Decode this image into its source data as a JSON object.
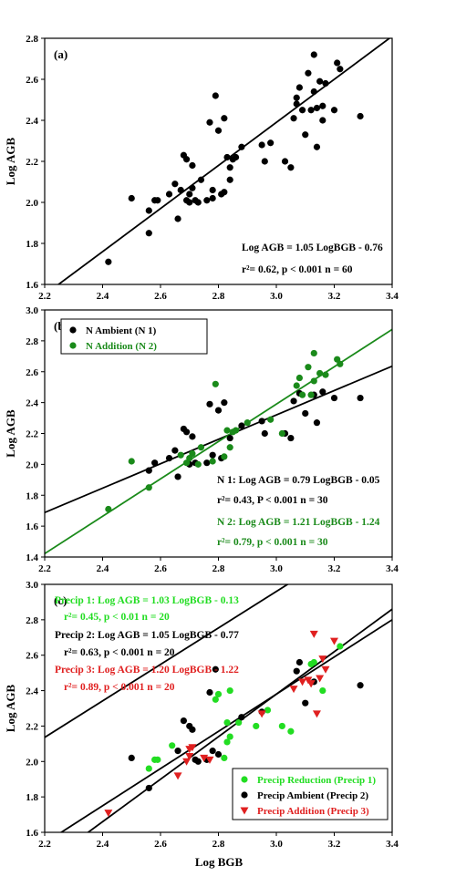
{
  "figure": {
    "xlabel": "Log  BGB"
  },
  "chart_data": [
    {
      "type": "scatter",
      "panel_label": "(a)",
      "xlim": [
        2.2,
        3.4
      ],
      "ylim": [
        1.6,
        2.8
      ],
      "xticks": [
        "2.2",
        "2.4",
        "2.6",
        "2.8",
        "3.0",
        "3.2",
        "3.4"
      ],
      "yticks": [
        "1.6",
        "1.8",
        "2.0",
        "2.2",
        "2.4",
        "2.6",
        "2.8"
      ],
      "ylabel": "Log  AGB",
      "series": [
        {
          "color": "#000000",
          "marker": "circle",
          "points": [
            [
              2.42,
              1.71
            ],
            [
              2.5,
              2.02
            ],
            [
              2.56,
              1.85
            ],
            [
              2.56,
              1.96
            ],
            [
              2.58,
              2.01
            ],
            [
              2.59,
              2.01
            ],
            [
              2.63,
              2.04
            ],
            [
              2.65,
              2.09
            ],
            [
              2.66,
              1.92
            ],
            [
              2.67,
              2.06
            ],
            [
              2.68,
              2.23
            ],
            [
              2.69,
              2.01
            ],
            [
              2.69,
              2.21
            ],
            [
              2.7,
              2.04
            ],
            [
              2.7,
              2.0
            ],
            [
              2.71,
              2.07
            ],
            [
              2.71,
              2.18
            ],
            [
              2.72,
              2.01
            ],
            [
              2.73,
              2.0
            ],
            [
              2.74,
              2.11
            ],
            [
              2.76,
              2.01
            ],
            [
              2.77,
              2.39
            ],
            [
              2.78,
              2.02
            ],
            [
              2.78,
              2.06
            ],
            [
              2.79,
              2.52
            ],
            [
              2.8,
              2.35
            ],
            [
              2.81,
              2.04
            ],
            [
              2.82,
              2.05
            ],
            [
              2.82,
              2.41
            ],
            [
              2.83,
              2.22
            ],
            [
              2.84,
              2.11
            ],
            [
              2.84,
              2.17
            ],
            [
              2.85,
              2.21
            ],
            [
              2.86,
              2.22
            ],
            [
              2.88,
              2.27
            ],
            [
              2.95,
              2.28
            ],
            [
              2.96,
              2.2
            ],
            [
              2.98,
              2.29
            ],
            [
              3.03,
              2.2
            ],
            [
              3.05,
              2.17
            ],
            [
              3.06,
              2.41
            ],
            [
              3.07,
              2.51
            ],
            [
              3.08,
              2.56
            ],
            [
              3.09,
              2.45
            ],
            [
              3.1,
              2.33
            ],
            [
              3.11,
              2.63
            ],
            [
              3.12,
              2.45
            ],
            [
              3.13,
              2.72
            ],
            [
              3.13,
              2.54
            ],
            [
              3.14,
              2.27
            ],
            [
              3.14,
              2.46
            ],
            [
              3.15,
              2.59
            ],
            [
              3.16,
              2.47
            ],
            [
              3.16,
              2.4
            ],
            [
              3.17,
              2.58
            ],
            [
              3.2,
              2.45
            ],
            [
              3.21,
              2.68
            ],
            [
              3.22,
              2.65
            ],
            [
              3.29,
              2.42
            ],
            [
              3.07,
              2.48
            ]
          ]
        }
      ],
      "lines": [
        {
          "color": "#000000",
          "slope": 1.05,
          "intercept": -0.76
        }
      ],
      "annotations": [
        {
          "text": "Log AGB = 1.05 LogBGB - 0.76",
          "color": "#000000"
        },
        {
          "text": "r²= 0.62, p < 0.001   n = 60",
          "color": "#000000"
        }
      ]
    },
    {
      "type": "scatter",
      "panel_label": "(b)",
      "xlim": [
        2.2,
        3.4
      ],
      "ylim": [
        1.4,
        3.0
      ],
      "xticks": [
        "2.2",
        "2.4",
        "2.6",
        "2.8",
        "3.0",
        "3.2",
        "3.4"
      ],
      "yticks": [
        "1.4",
        "1.6",
        "1.8",
        "2.0",
        "2.2",
        "2.4",
        "2.6",
        "2.8",
        "3.0"
      ],
      "ylabel": "Log  AGB",
      "series": [
        {
          "name": "N Ambient   (N 1)",
          "color": "#000000",
          "marker": "circle",
          "points": [
            [
              2.56,
              1.96
            ],
            [
              2.58,
              2.01
            ],
            [
              2.63,
              2.04
            ],
            [
              2.65,
              2.09
            ],
            [
              2.66,
              1.92
            ],
            [
              2.68,
              2.23
            ],
            [
              2.69,
              2.21
            ],
            [
              2.7,
              2.0
            ],
            [
              2.71,
              2.18
            ],
            [
              2.72,
              2.01
            ],
            [
              2.76,
              2.01
            ],
            [
              2.77,
              2.39
            ],
            [
              2.78,
              2.06
            ],
            [
              2.8,
              2.35
            ],
            [
              2.81,
              2.04
            ],
            [
              2.82,
              2.4
            ],
            [
              2.84,
              2.17
            ],
            [
              2.88,
              2.25
            ],
            [
              2.95,
              2.28
            ],
            [
              2.96,
              2.2
            ],
            [
              3.03,
              2.2
            ],
            [
              3.05,
              2.17
            ],
            [
              3.06,
              2.41
            ],
            [
              3.08,
              2.46
            ],
            [
              3.1,
              2.33
            ],
            [
              3.13,
              2.45
            ],
            [
              3.14,
              2.27
            ],
            [
              3.16,
              2.47
            ],
            [
              3.2,
              2.43
            ],
            [
              3.29,
              2.43
            ]
          ]
        },
        {
          "name": "N Addition   (N 2)",
          "color": "#1a8a1a",
          "marker": "circle",
          "points": [
            [
              2.42,
              1.71
            ],
            [
              2.5,
              2.02
            ],
            [
              2.56,
              1.85
            ],
            [
              2.67,
              2.06
            ],
            [
              2.69,
              2.01
            ],
            [
              2.7,
              2.04
            ],
            [
              2.71,
              2.07
            ],
            [
              2.73,
              2.0
            ],
            [
              2.74,
              2.11
            ],
            [
              2.78,
              2.02
            ],
            [
              2.79,
              2.52
            ],
            [
              2.82,
              2.05
            ],
            [
              2.83,
              2.22
            ],
            [
              2.84,
              2.11
            ],
            [
              2.85,
              2.21
            ],
            [
              2.86,
              2.22
            ],
            [
              2.9,
              2.27
            ],
            [
              2.98,
              2.29
            ],
            [
              3.02,
              2.2
            ],
            [
              3.07,
              2.51
            ],
            [
              3.08,
              2.56
            ],
            [
              3.09,
              2.45
            ],
            [
              3.11,
              2.63
            ],
            [
              3.12,
              2.45
            ],
            [
              3.13,
              2.72
            ],
            [
              3.13,
              2.54
            ],
            [
              3.15,
              2.59
            ],
            [
              3.17,
              2.58
            ],
            [
              3.21,
              2.68
            ],
            [
              3.22,
              2.65
            ]
          ]
        }
      ],
      "lines": [
        {
          "color": "#000000",
          "slope": 0.79,
          "intercept": -0.05
        },
        {
          "color": "#1a8a1a",
          "slope": 1.21,
          "intercept": -1.24
        }
      ],
      "annotations": [
        {
          "text": "N 1: Log AGB = 0.79 LogBGB - 0.05",
          "color": "#000000"
        },
        {
          "text": "r²= 0.43, P < 0.001   n = 30",
          "color": "#000000"
        },
        {
          "text": "N 2: Log AGB = 1.21 LogBGB - 1.24",
          "color": "#1a8a1a"
        },
        {
          "text": "r²= 0.79, p < 0.001   n = 30",
          "color": "#1a8a1a"
        }
      ],
      "legend_position": "top-left"
    },
    {
      "type": "scatter",
      "panel_label": "(c)",
      "xlim": [
        2.2,
        3.4
      ],
      "ylim": [
        1.6,
        3.0
      ],
      "xticks": [
        "2.2",
        "2.4",
        "2.6",
        "2.8",
        "3.0",
        "3.2",
        "3.4"
      ],
      "yticks": [
        "1.6",
        "1.8",
        "2.0",
        "2.2",
        "2.4",
        "2.6",
        "2.8",
        "3.0"
      ],
      "ylabel": "Log  AGB",
      "series": [
        {
          "name": "Precip Reduction (Precip 1)",
          "color": "#22dd22",
          "marker": "circle",
          "points": [
            [
              2.56,
              1.96
            ],
            [
              2.58,
              2.01
            ],
            [
              2.59,
              2.01
            ],
            [
              2.64,
              2.09
            ],
            [
              2.79,
              2.35
            ],
            [
              2.8,
              2.38
            ],
            [
              2.82,
              2.02
            ],
            [
              2.83,
              2.11
            ],
            [
              2.83,
              2.22
            ],
            [
              2.84,
              2.4
            ],
            [
              2.84,
              2.14
            ],
            [
              2.87,
              2.22
            ],
            [
              2.93,
              2.2
            ],
            [
              2.97,
              2.29
            ],
            [
              3.02,
              2.2
            ],
            [
              3.05,
              2.17
            ],
            [
              3.12,
              2.55
            ],
            [
              3.13,
              2.56
            ],
            [
              3.16,
              2.4
            ],
            [
              3.22,
              2.65
            ]
          ]
        },
        {
          "name": "Precip Ambient   (Precip 2)",
          "color": "#000000",
          "marker": "circle",
          "points": [
            [
              2.5,
              2.02
            ],
            [
              2.56,
              1.85
            ],
            [
              2.66,
              2.06
            ],
            [
              2.68,
              2.23
            ],
            [
              2.7,
              2.2
            ],
            [
              2.71,
              2.18
            ],
            [
              2.72,
              2.01
            ],
            [
              2.73,
              2.0
            ],
            [
              2.76,
              2.01
            ],
            [
              2.77,
              2.39
            ],
            [
              2.78,
              2.06
            ],
            [
              2.79,
              2.52
            ],
            [
              2.8,
              2.04
            ],
            [
              2.88,
              2.25
            ],
            [
              2.95,
              2.28
            ],
            [
              3.07,
              2.51
            ],
            [
              3.08,
              2.56
            ],
            [
              3.1,
              2.33
            ],
            [
              3.13,
              2.45
            ],
            [
              3.29,
              2.43
            ]
          ]
        },
        {
          "name": "Precip Addition   (Precip 3)",
          "color": "#e02020",
          "marker": "triangle-down",
          "points": [
            [
              2.42,
              1.71
            ],
            [
              2.66,
              1.92
            ],
            [
              2.69,
              2.0
            ],
            [
              2.7,
              2.03
            ],
            [
              2.7,
              2.07
            ],
            [
              2.71,
              2.08
            ],
            [
              2.75,
              2.02
            ],
            [
              2.77,
              2.01
            ],
            [
              2.95,
              2.27
            ],
            [
              3.06,
              2.41
            ],
            [
              3.09,
              2.45
            ],
            [
              3.11,
              2.46
            ],
            [
              3.12,
              2.44
            ],
            [
              3.13,
              2.72
            ],
            [
              3.14,
              2.27
            ],
            [
              3.15,
              2.47
            ],
            [
              3.16,
              2.58
            ],
            [
              3.17,
              2.52
            ],
            [
              3.2,
              2.68
            ],
            [
              3.12,
              2.44
            ]
          ]
        }
      ],
      "lines": [
        {
          "color": "#000000",
          "slope": 1.03,
          "intercept": -0.13
        },
        {
          "color": "#000000",
          "slope": 1.05,
          "intercept": -0.77
        },
        {
          "color": "#000000",
          "slope": 1.2,
          "intercept": -1.22
        }
      ],
      "annotations": [
        {
          "text": "Precip 1: Log AGB = 1.03 LogBGB - 0.13",
          "color": "#22dd22"
        },
        {
          "text": "r²= 0.45,   p < 0.01   n = 20",
          "color": "#22dd22"
        },
        {
          "text": "Precip 2: Log AGB = 1.05 LogBGB - 0.77",
          "color": "#000000"
        },
        {
          "text": "r²= 0.63,   p < 0.001   n = 20",
          "color": "#000000"
        },
        {
          "text": "Precip 3: Log AGB = 1.20 LogBGB - 1.22",
          "color": "#e02020"
        },
        {
          "text": "r²= 0.89,   p < 0.001   n = 20",
          "color": "#e02020"
        }
      ],
      "legend_position": "bottom-right"
    }
  ]
}
